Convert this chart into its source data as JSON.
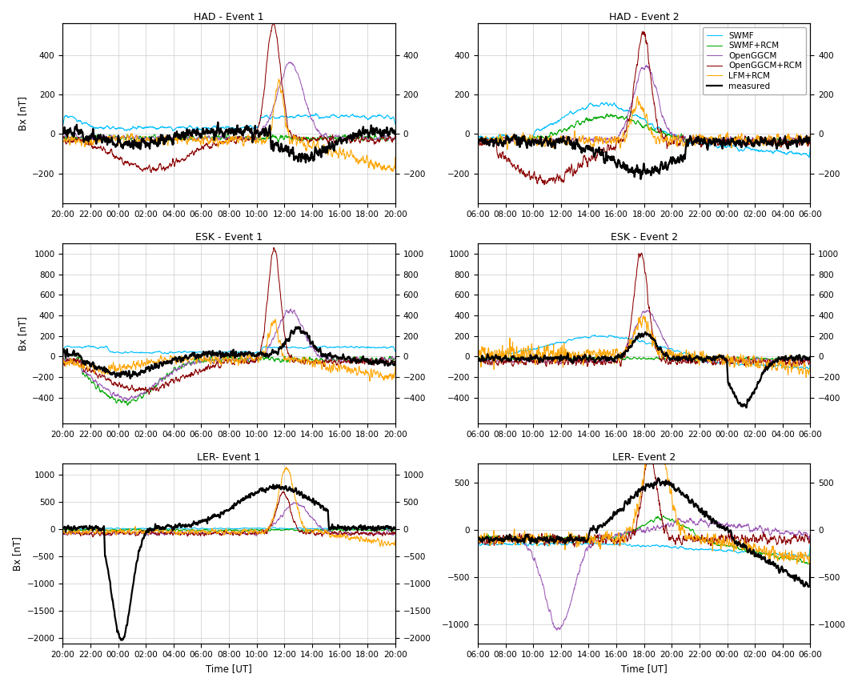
{
  "titles": [
    [
      "HAD - Event 1",
      "HAD - Event 2"
    ],
    [
      "ESK - Event 1",
      "ESK - Event 2"
    ],
    [
      "LER- Event 1",
      "LER- Event 2"
    ]
  ],
  "event1_xticks": [
    "20:00",
    "22:00",
    "00:00",
    "02:00",
    "04:00",
    "06:00",
    "08:00",
    "10:00",
    "12:00",
    "14:00",
    "16:00",
    "18:00",
    "20:00"
  ],
  "event2_xticks": [
    "06:00",
    "08:00",
    "10:00",
    "12:00",
    "14:00",
    "16:00",
    "18:00",
    "20:00",
    "22:00",
    "00:00",
    "02:00",
    "04:00",
    "06:00"
  ],
  "xlabel": "Time [UT]",
  "ylabel": "Bx [nT]",
  "ylims": [
    [
      [
        -350,
        560
      ],
      [
        -350,
        560
      ]
    ],
    [
      [
        -650,
        1100
      ],
      [
        -650,
        1100
      ]
    ],
    [
      [
        -2100,
        1200
      ],
      [
        -1200,
        700
      ]
    ]
  ],
  "yticks": [
    [
      [
        -200,
        0,
        200,
        400
      ],
      [
        -200,
        0,
        200,
        400
      ]
    ],
    [
      [
        -400,
        -200,
        0,
        200,
        400,
        600,
        800,
        1000
      ],
      [
        -400,
        -200,
        0,
        200,
        400,
        600,
        800,
        1000
      ]
    ],
    [
      [
        -2000,
        -1500,
        -1000,
        -500,
        0,
        500,
        1000
      ],
      [
        -1000,
        -500,
        0,
        500
      ]
    ]
  ],
  "colors": {
    "SWMF": "#00bfff",
    "SWMF+RCM": "#00aa00",
    "OpenGGCM": "#9b59b6",
    "OpenGGCM+RCM": "#8b0000",
    "LFM+RCM": "#ffa500",
    "measured": "#000000"
  },
  "legend_labels": [
    "SWMF",
    "SWMF+RCM",
    "OpenGGCM",
    "OpenGGCM+RCM",
    "LFM+RCM",
    "measured"
  ],
  "background": "#ffffff",
  "grid_color": "#cccccc"
}
